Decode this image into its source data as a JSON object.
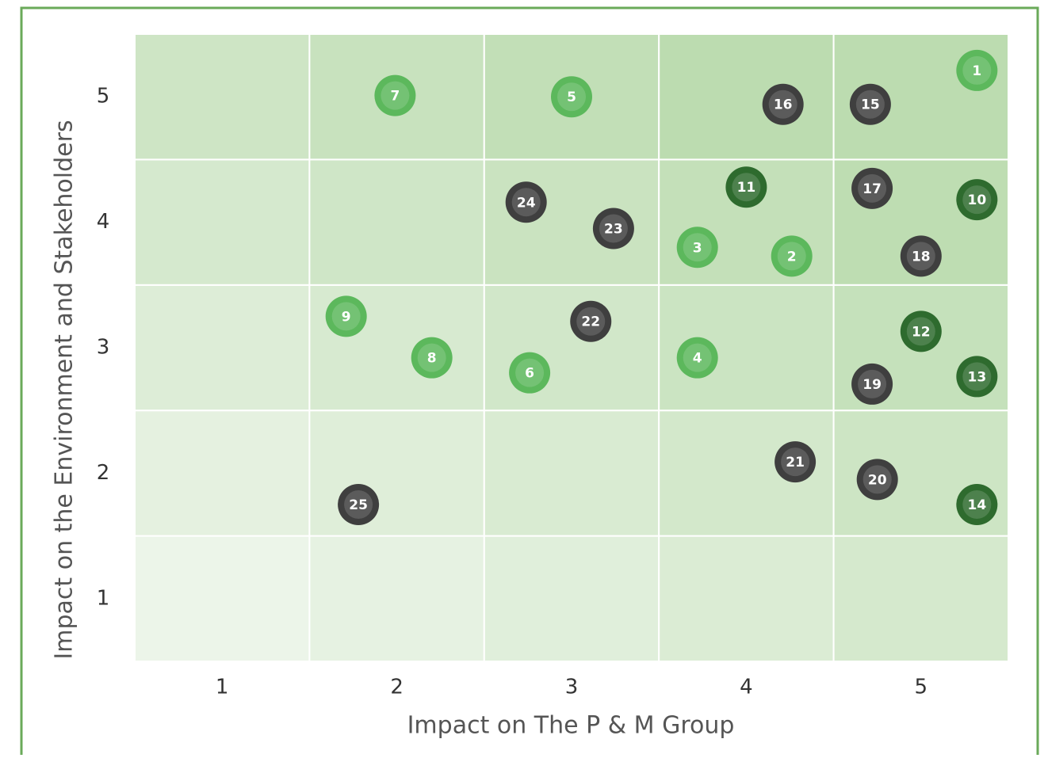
{
  "chart_data": {
    "type": "scatter",
    "xlabel": "Impact on The P & M Group",
    "ylabel": "Impact on the Environment and Stakeholders",
    "xlim": [
      0.5,
      5.5
    ],
    "ylim": [
      0.5,
      5.5
    ],
    "xticks": [
      1,
      2,
      3,
      4,
      5
    ],
    "yticks": [
      1,
      2,
      3,
      4,
      5
    ],
    "labels": [
      "1",
      "7",
      "5",
      "16",
      "15",
      "24",
      "23",
      "11",
      "17",
      "10",
      "3",
      "2",
      "18",
      "9",
      "22",
      "12",
      "8",
      "4",
      "6",
      "19",
      "13",
      "21",
      "20",
      "14",
      "25"
    ],
    "x": [
      5.32,
      1.99,
      3.0,
      4.21,
      4.71,
      2.74,
      3.24,
      4.0,
      4.72,
      5.32,
      3.72,
      4.26,
      5.0,
      1.71,
      3.11,
      5.0,
      2.2,
      3.72,
      2.76,
      4.72,
      5.32,
      4.28,
      4.75,
      5.32,
      1.78
    ],
    "y": [
      5.21,
      5.01,
      5.0,
      4.94,
      4.94,
      4.16,
      3.95,
      4.28,
      4.27,
      4.18,
      3.8,
      3.73,
      3.73,
      3.25,
      3.21,
      3.13,
      2.92,
      2.92,
      2.8,
      2.71,
      2.77,
      2.09,
      1.95,
      1.75,
      1.75
    ],
    "colors": [
      "#5cb85c",
      "#5cb85c",
      "#5cb85c",
      "#3f3f3f",
      "#3f3f3f",
      "#3f3f3f",
      "#3f3f3f",
      "#2e6b2e",
      "#3f3f3f",
      "#2e6b2e",
      "#5cb85c",
      "#5cb85c",
      "#3f3f3f",
      "#5cb85c",
      "#3f3f3f",
      "#2e6b2e",
      "#5cb85c",
      "#5cb85c",
      "#5cb85c",
      "#3f3f3f",
      "#2e6b2e",
      "#3f3f3f",
      "#3f3f3f",
      "#2e6b2e",
      "#3f3f3f"
    ]
  }
}
